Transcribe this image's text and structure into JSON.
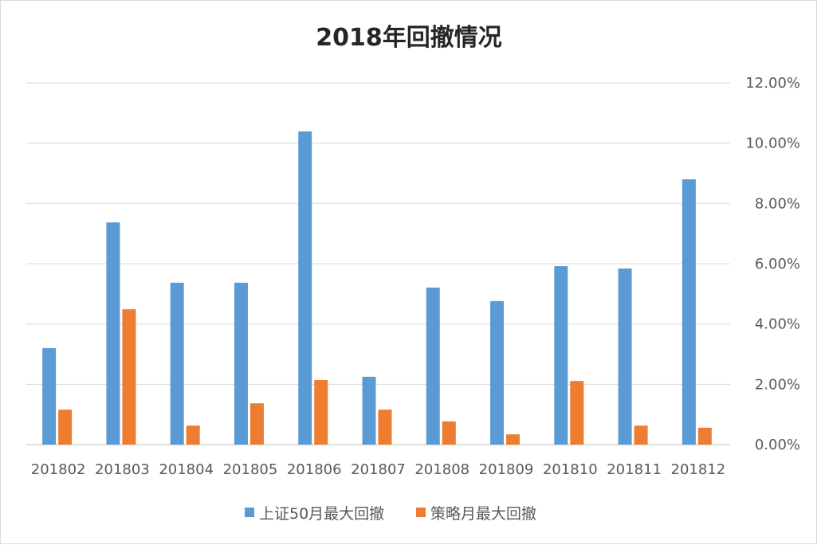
{
  "chart_data": {
    "type": "bar",
    "title": "2018年回撤情况",
    "categories": [
      "201802",
      "201803",
      "201804",
      "201805",
      "201806",
      "201807",
      "201808",
      "201809",
      "201810",
      "201811",
      "201812"
    ],
    "series": [
      {
        "name": "上证50月最大回撤",
        "color": "#5B9BD5",
        "values": [
          3.2,
          7.37,
          5.37,
          5.37,
          10.39,
          2.25,
          5.21,
          4.76,
          5.92,
          5.84,
          8.8
        ]
      },
      {
        "name": "策略月最大回撤",
        "color": "#ED7D31",
        "values": [
          1.16,
          4.49,
          0.63,
          1.37,
          2.14,
          1.16,
          0.77,
          0.34,
          2.11,
          0.63,
          0.56
        ]
      }
    ],
    "ylim": [
      0,
      12
    ],
    "yticks": [
      "0.00%",
      "2.00%",
      "4.00%",
      "6.00%",
      "8.00%",
      "10.00%",
      "12.00%"
    ],
    "yaxis_position": "right",
    "unit": "%",
    "grid": true,
    "legend": "bottom"
  }
}
